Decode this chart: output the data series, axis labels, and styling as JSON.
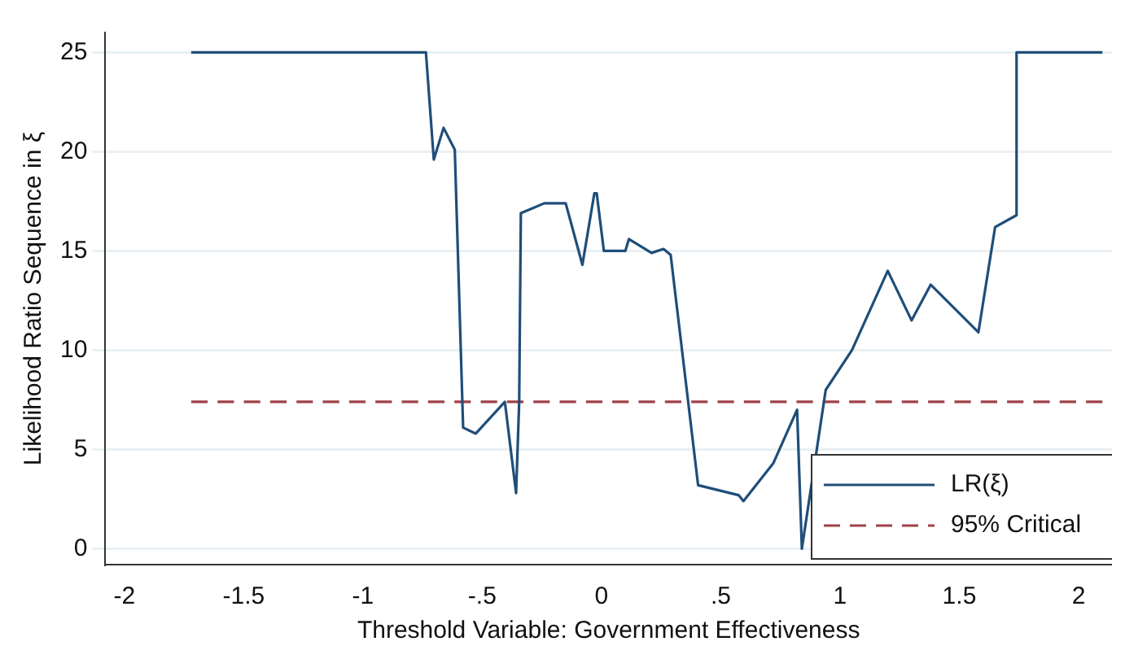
{
  "chart_data": {
    "type": "line",
    "xlabel": "Threshold Variable: Government Effectiveness",
    "ylabel": "Likelihood Ratio Sequence in ξ",
    "xlim": [
      -2.08,
      2.14
    ],
    "xticks": [
      {
        "value": -2,
        "label": "-2"
      },
      {
        "value": -1.5,
        "label": "-1.5"
      },
      {
        "value": -1,
        "label": "-1"
      },
      {
        "value": -0.5,
        "label": "-.5"
      },
      {
        "value": 0,
        "label": "0"
      },
      {
        "value": 0.5,
        "label": ".5"
      },
      {
        "value": 1,
        "label": "1"
      },
      {
        "value": 1.5,
        "label": "1.5"
      },
      {
        "value": 2,
        "label": "2"
      }
    ],
    "ylim": [
      -0.8,
      26
    ],
    "yticks": [
      0,
      5,
      10,
      15,
      20,
      25
    ],
    "grid": "y",
    "legend": "bottom right",
    "marker": "none",
    "series": [
      {
        "name": "LR(ξ)",
        "color": "#1f4e79",
        "line_style": "solid",
        "x": [
          -1.72,
          -0.736,
          -0.703,
          -0.662,
          -0.615,
          -0.58,
          -0.527,
          -0.405,
          -0.358,
          -0.345,
          -0.338,
          -0.24,
          -0.15,
          -0.08,
          -0.03,
          -0.02,
          0.01,
          0.1,
          0.115,
          0.21,
          0.26,
          0.29,
          0.405,
          0.575,
          0.595,
          0.72,
          0.82,
          0.84,
          0.94,
          1.05,
          1.2,
          1.3,
          1.38,
          1.58,
          1.65,
          1.74,
          1.74,
          2.1
        ],
        "values": [
          25,
          25,
          19.6,
          21.2,
          20.1,
          6.1,
          5.8,
          7.4,
          2.8,
          7.4,
          16.9,
          17.4,
          17.4,
          14.3,
          17.9,
          17.9,
          15,
          15,
          15.6,
          14.9,
          15.1,
          14.8,
          3.2,
          2.7,
          2.4,
          4.3,
          7,
          0,
          8,
          10,
          14,
          11.5,
          13.3,
          10.9,
          16.2,
          16.8,
          25,
          25
        ]
      },
      {
        "name": "95% Critical",
        "color": "#a04048",
        "line_style": "dashed",
        "x": [
          -1.72,
          2.1
        ],
        "values": [
          7.4,
          7.4
        ]
      }
    ]
  }
}
